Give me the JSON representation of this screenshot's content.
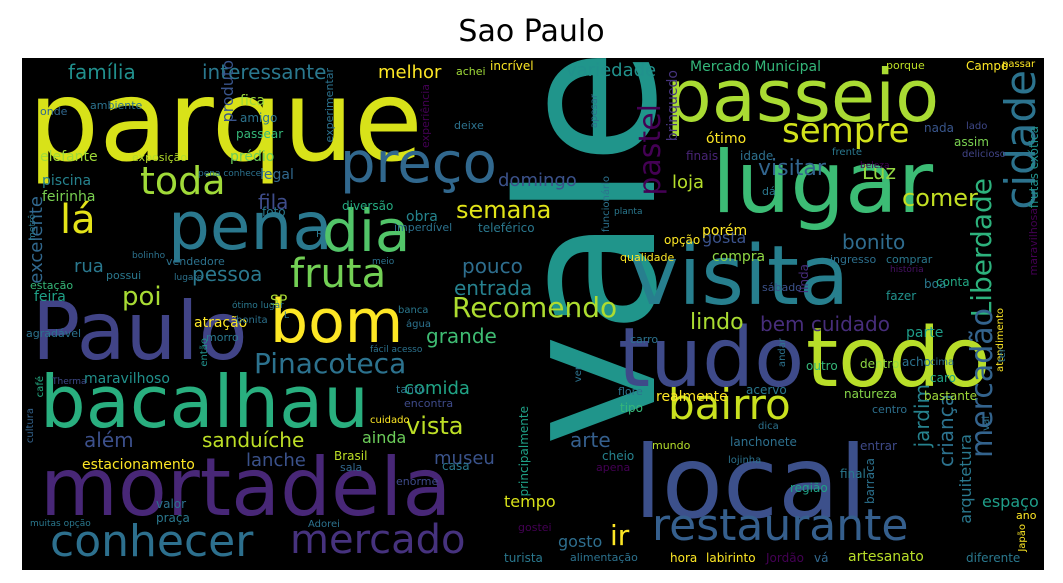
{
  "title": "Sao Paulo",
  "words": [
    {
      "text": "vale",
      "color": "#20958b"
    },
    {
      "text": "parque",
      "color": "#d8e219"
    },
    {
      "text": "local",
      "color": "#3c508b"
    },
    {
      "text": "passeio",
      "color": "#a9db33"
    },
    {
      "text": "lugar",
      "color": "#3cbc75"
    },
    {
      "text": "visita",
      "color": "#277f8e"
    },
    {
      "text": "tudo",
      "color": "#3e4a89"
    },
    {
      "text": "todo",
      "color": "#b8de29"
    },
    {
      "text": "mortadela",
      "color": "#482777"
    },
    {
      "text": "Paulo",
      "color": "#414487"
    },
    {
      "text": "bacalhau",
      "color": "#29af7f"
    },
    {
      "text": "pena",
      "color": "#2a788e"
    },
    {
      "text": "dia",
      "color": "#52c569"
    },
    {
      "text": "preço",
      "color": "#31688e"
    },
    {
      "text": "bom",
      "color": "#fde725"
    },
    {
      "text": "fruta",
      "color": "#73d055"
    },
    {
      "text": "restaurante",
      "color": "#355f8d"
    },
    {
      "text": "conhecer",
      "color": "#2d708e"
    },
    {
      "text": "mercado",
      "color": "#46327e"
    },
    {
      "text": "sempre",
      "color": "#d2e21b"
    },
    {
      "text": "cidade",
      "color": "#2c738e"
    },
    {
      "text": "toda",
      "color": "#a0da39"
    },
    {
      "text": "lá",
      "color": "#e5e419"
    },
    {
      "text": "bairro",
      "color": "#cae11f"
    },
    {
      "text": "pastel",
      "color": "#440154"
    },
    {
      "text": "Recomendo",
      "color": "#addc30"
    },
    {
      "text": "Pinacoteca",
      "color": "#2c728e"
    },
    {
      "text": "Liberdade",
      "color": "#2db27d"
    },
    {
      "text": "mercadão",
      "color": "#33638d"
    },
    {
      "text": "família",
      "color": "#21908d"
    },
    {
      "text": "interessante",
      "color": "#2a788e"
    },
    {
      "text": "melhor",
      "color": "#fde725"
    },
    {
      "text": "variedade",
      "color": "#21918c"
    },
    {
      "text": "Mercado Municipal",
      "color": "#34b679"
    },
    {
      "text": "Campo",
      "color": "#fde725"
    },
    {
      "text": "passar",
      "color": "#fde725"
    },
    {
      "text": "semana",
      "color": "#e2e418"
    },
    {
      "text": "domingo",
      "color": "#3b528b"
    },
    {
      "text": "loja",
      "color": "#b5de2b"
    },
    {
      "text": "visitar",
      "color": "#32658e"
    },
    {
      "text": "Luz",
      "color": "#93d741"
    },
    {
      "text": "comer",
      "color": "#c2df23"
    },
    {
      "text": "bonito",
      "color": "#2f6c8e"
    },
    {
      "text": "gosta",
      "color": "#3b528b"
    },
    {
      "text": "fila",
      "color": "#3e4c8a"
    },
    {
      "text": "pessoa",
      "color": "#2a788e"
    },
    {
      "text": "pouco",
      "color": "#2e6e8e"
    },
    {
      "text": "entrada",
      "color": "#26818e"
    },
    {
      "text": "poi",
      "color": "#a8db34"
    },
    {
      "text": "SP",
      "color": "#a8db34"
    },
    {
      "text": "atração",
      "color": "#fde725"
    },
    {
      "text": "rua",
      "color": "#2a788e"
    },
    {
      "text": "feira",
      "color": "#1fa187"
    },
    {
      "text": "excelente",
      "color": "#31688e"
    },
    {
      "text": "lindo",
      "color": "#aadc32"
    },
    {
      "text": "bem cuidado",
      "color": "#472d7b"
    },
    {
      "text": "grande",
      "color": "#3fbc73"
    },
    {
      "text": "maravilhoso",
      "color": "#21918c"
    },
    {
      "text": "comida",
      "color": "#20a486"
    },
    {
      "text": "vista",
      "color": "#bddf26"
    },
    {
      "text": "arte",
      "color": "#355f8d"
    },
    {
      "text": "além",
      "color": "#3c508b"
    },
    {
      "text": "sanduíche",
      "color": "#bddf26"
    },
    {
      "text": "ainda",
      "color": "#6ccd5a"
    },
    {
      "text": "lanche",
      "color": "#3b528b"
    },
    {
      "text": "museu",
      "color": "#3a538b"
    },
    {
      "text": "estacionamento",
      "color": "#fde725"
    },
    {
      "text": "jardim",
      "color": "#26828e"
    },
    {
      "text": "criança",
      "color": "#2c728e"
    },
    {
      "text": "ir",
      "color": "#fde725"
    },
    {
      "text": "gosto",
      "color": "#2e6e8e"
    },
    {
      "text": "tempo",
      "color": "#d8e219"
    },
    {
      "text": "produto",
      "color": "#39558c"
    },
    {
      "text": "brinquedo",
      "color": "#46337e"
    },
    {
      "text": "ótimo",
      "color": "#fde725"
    },
    {
      "text": "finais",
      "color": "#482475"
    },
    {
      "text": "idade",
      "color": "#2d708e"
    },
    {
      "text": "nada",
      "color": "#39568c"
    },
    {
      "text": "assim",
      "color": "#7ad151"
    },
    {
      "text": "lado",
      "color": "#3f4889"
    },
    {
      "text": "delicioso",
      "color": "#414487"
    },
    {
      "text": "frutas exótica",
      "color": "#21918c"
    },
    {
      "text": "fica",
      "color": "#9bd93c"
    },
    {
      "text": "amigo",
      "color": "#2c738e"
    },
    {
      "text": "passear",
      "color": "#35b779"
    },
    {
      "text": "elefante",
      "color": "#a0da39"
    },
    {
      "text": "exposição",
      "color": "#b5de2b"
    },
    {
      "text": "prédio",
      "color": "#6ccd5a"
    },
    {
      "text": "piscina",
      "color": "#26828e"
    },
    {
      "text": "feirinha",
      "color": "#7ad151"
    },
    {
      "text": "legal",
      "color": "#31688e"
    },
    {
      "text": "foto",
      "color": "#2a788e"
    },
    {
      "text": "diversão",
      "color": "#25ab82"
    },
    {
      "text": "obra",
      "color": "#25848e"
    },
    {
      "text": "teleférico",
      "color": "#2a788e"
    },
    {
      "text": "compra",
      "color": "#8fd744"
    },
    {
      "text": "porém",
      "color": "#fde725"
    },
    {
      "text": "opção",
      "color": "#fde725"
    },
    {
      "text": "qualidade",
      "color": "#fde725"
    },
    {
      "text": "sábado",
      "color": "#3b528b"
    },
    {
      "text": "linda",
      "color": "#472d7b"
    },
    {
      "text": "ingresso",
      "color": "#2d708e"
    },
    {
      "text": "comprar",
      "color": "#2a788e"
    },
    {
      "text": "história",
      "color": "#471164"
    },
    {
      "text": "boa",
      "color": "#2a788e"
    },
    {
      "text": "fazer",
      "color": "#21918c"
    },
    {
      "text": "conta",
      "color": "#22a884"
    },
    {
      "text": "maravilhosa",
      "color": "#440154"
    },
    {
      "text": "parte",
      "color": "#1f9e89"
    },
    {
      "text": "outro",
      "color": "#35b779"
    },
    {
      "text": "dentro",
      "color": "#8fd744"
    },
    {
      "text": "acho",
      "color": "#2c728e"
    },
    {
      "text": "caro",
      "color": "#20a486"
    },
    {
      "text": "natureza",
      "color": "#86d549"
    },
    {
      "text": "bastante",
      "color": "#a0da39"
    },
    {
      "text": "centro",
      "color": "#2d708e"
    },
    {
      "text": "entrar",
      "color": "#3e4a89"
    },
    {
      "text": "lanchonete",
      "color": "#2d708e"
    },
    {
      "text": "mundo",
      "color": "#b5de2b"
    },
    {
      "text": "acervo",
      "color": "#2a788e"
    },
    {
      "text": "realmente",
      "color": "#fde725"
    },
    {
      "text": "tipo",
      "color": "#35b779"
    },
    {
      "text": "flore",
      "color": "#2c728e"
    },
    {
      "text": "final",
      "color": "#2a788e"
    },
    {
      "text": "região",
      "color": "#1fa187"
    },
    {
      "text": "barraca",
      "color": "#2c728e"
    },
    {
      "text": "arquitetura",
      "color": "#2a788e"
    },
    {
      "text": "espaço",
      "color": "#1f9e89"
    },
    {
      "text": "artesanato",
      "color": "#b8de29"
    },
    {
      "text": "diferente",
      "color": "#2a788e"
    },
    {
      "text": "labirinto",
      "color": "#fde725"
    },
    {
      "text": "Jordão",
      "color": "#440154"
    },
    {
      "text": "vá",
      "color": "#31688e"
    },
    {
      "text": "hora",
      "color": "#fde725"
    },
    {
      "text": "turista",
      "color": "#2a788e"
    },
    {
      "text": "alimentação",
      "color": "#2c728e"
    },
    {
      "text": "cheio",
      "color": "#26828e"
    },
    {
      "text": "apena",
      "color": "#440154"
    },
    {
      "text": "casa",
      "color": "#2a788e"
    },
    {
      "text": "Brasil",
      "color": "#bddf26"
    },
    {
      "text": "sala",
      "color": "#31688e"
    },
    {
      "text": "enorme",
      "color": "#3e4a89"
    },
    {
      "text": "valor",
      "color": "#2c728e"
    },
    {
      "text": "praça",
      "color": "#2a788e"
    },
    {
      "text": "muitas opção",
      "color": "#2a788e"
    },
    {
      "text": "Adorei",
      "color": "#2c728e"
    },
    {
      "text": "cultura",
      "color": "#33638d"
    },
    {
      "text": "café",
      "color": "#25ab82"
    },
    {
      "text": "Therma",
      "color": "#3e4a89"
    },
    {
      "text": "tanto",
      "color": "#2a788e"
    },
    {
      "text": "encontra",
      "color": "#3e4a89"
    },
    {
      "text": "cuidado",
      "color": "#fde725"
    },
    {
      "text": "ver",
      "color": "#2c728e"
    },
    {
      "text": "principalmente",
      "color": "#1fa187"
    },
    {
      "text": "experiência",
      "color": "#440154"
    },
    {
      "text": "incrível",
      "color": "#fde725"
    },
    {
      "text": "achei",
      "color": "#a0da39"
    },
    {
      "text": "porque",
      "color": "#bddf26"
    },
    {
      "text": "ambiente",
      "color": "#2c728e"
    },
    {
      "text": "onde",
      "color": "#31688e"
    },
    {
      "text": "experimentar",
      "color": "#2c728e"
    },
    {
      "text": "deixe",
      "color": "#2c728e"
    },
    {
      "text": "apesar",
      "color": "#2c728e"
    },
    {
      "text": "pena conhecer",
      "color": "#2c728e"
    },
    {
      "text": "metrô",
      "color": "#2a788e"
    },
    {
      "text": "imperdível",
      "color": "#2c728e"
    },
    {
      "text": "funcionário",
      "color": "#2c728e"
    },
    {
      "text": "planta",
      "color": "#2a788e"
    },
    {
      "text": "beleza",
      "color": "#440154"
    },
    {
      "text": "dá",
      "color": "#2a788e"
    },
    {
      "text": "frente",
      "color": "#2a788e"
    },
    {
      "text": "bolinho",
      "color": "#2c728e"
    },
    {
      "text": "vendedore",
      "color": "#2c728e"
    },
    {
      "text": "meio",
      "color": "#2c728e"
    },
    {
      "text": "possui",
      "color": "#2a788e"
    },
    {
      "text": "lugare",
      "color": "#2c728e"
    },
    {
      "text": "ótimo lugar",
      "color": "#2a788e"
    },
    {
      "text": "estação",
      "color": "#35b779"
    },
    {
      "text": "agradável",
      "color": "#2c728e"
    },
    {
      "text": "morro",
      "color": "#2a788e"
    },
    {
      "text": "então",
      "color": "#21918c"
    },
    {
      "text": "bonita",
      "color": "#2c728e"
    },
    {
      "text": "banca",
      "color": "#2a788e"
    },
    {
      "text": "água",
      "color": "#2c728e"
    },
    {
      "text": "fácil acesso",
      "color": "#2c728e"
    },
    {
      "text": "andar",
      "color": "#2c728e"
    },
    {
      "text": "atendimento",
      "color": "#fde725"
    },
    {
      "text": "dica",
      "color": "#2c728e"
    },
    {
      "text": "lojinha",
      "color": "#2c728e"
    },
    {
      "text": "cima",
      "color": "#2c728e"
    },
    {
      "text": "ter",
      "color": "#2c728e"
    },
    {
      "text": "ano",
      "color": "#fde725"
    },
    {
      "text": "Japão",
      "color": "#fde725"
    },
    {
      "text": "gostei",
      "color": "#440154"
    },
    {
      "text": "vai",
      "color": "#2c728e"
    },
    {
      "text": "carro",
      "color": "#2c728e"
    },
    {
      "text": "L",
      "color": "#2c728e"
    },
    {
      "text": "R",
      "color": "#2a788e"
    }
  ]
}
